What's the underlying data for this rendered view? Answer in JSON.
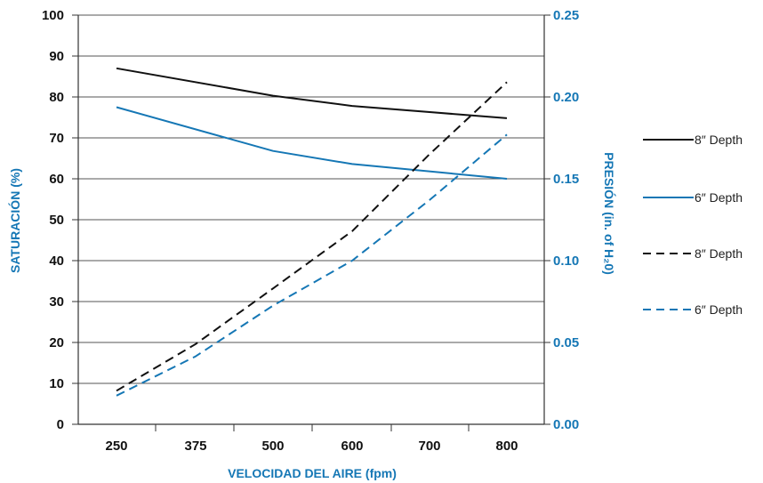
{
  "chart_data": {
    "type": "line",
    "title": "",
    "xlabel": "VELOCIDAD DEL AIRE (fpm)",
    "ylabel_left": "SATURACIÓN (%)",
    "ylabel_right": "PRESIÓN (in. of H₂0)",
    "x_ticks": [
      "250",
      "375",
      "500",
      "600",
      "700",
      "800"
    ],
    "y_left_ticks": [
      "0",
      "10",
      "20",
      "30",
      "40",
      "50",
      "60",
      "70",
      "80",
      "90",
      "100"
    ],
    "y_right_ticks": [
      "0.00",
      "0.05",
      "0.10",
      "0.15",
      "0.20",
      "0.25"
    ],
    "y_left_lim": [
      0,
      100
    ],
    "y_right_lim": [
      0,
      0.25
    ],
    "grid": "horizontal",
    "legend_position": "right",
    "series": [
      {
        "name": "8″ Depth",
        "axis": "left",
        "style": "solid",
        "color": "#111111",
        "x": [
          250,
          500,
          600,
          800
        ],
        "values": [
          87,
          80.3,
          77.8,
          74.8
        ]
      },
      {
        "name": "6″ Depth",
        "axis": "left",
        "style": "solid",
        "color": "#1577b5",
        "x": [
          250,
          500,
          600,
          800
        ],
        "values": [
          77.5,
          66.8,
          63.6,
          60
        ]
      },
      {
        "name": "8″ Depth",
        "axis": "right",
        "style": "dashed",
        "color": "#111111",
        "x": [
          250,
          375,
          500,
          600,
          700,
          800
        ],
        "values": [
          0.0205,
          0.049,
          0.083,
          0.118,
          0.165,
          0.209
        ]
      },
      {
        "name": "6″ Depth",
        "axis": "right",
        "style": "dashed",
        "color": "#1577b5",
        "x": [
          250,
          375,
          500,
          600,
          700,
          800
        ],
        "values": [
          0.0175,
          0.0415,
          0.0725,
          0.1,
          0.137,
          0.177
        ]
      }
    ]
  }
}
